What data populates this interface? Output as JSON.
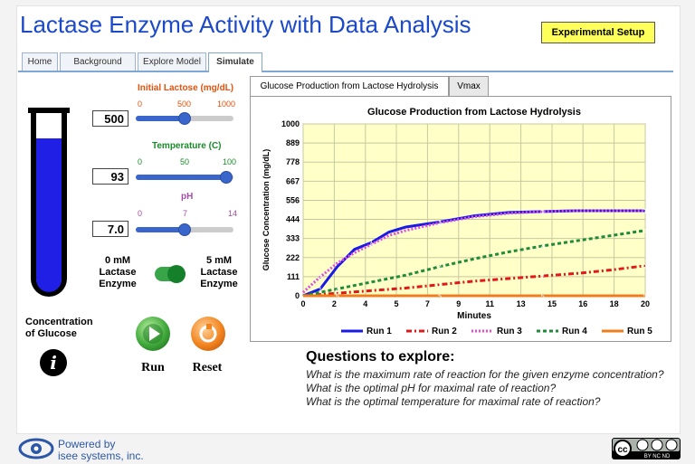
{
  "app": {
    "title": "Lactase Enzyme Activity with Data Analysis",
    "experimental_setup_label": "Experimental Setup"
  },
  "tabs": [
    {
      "label": "Home",
      "active": false
    },
    {
      "label": "Background",
      "active": false
    },
    {
      "label": "Explore Model",
      "active": false
    },
    {
      "label": "Simulate",
      "active": true
    }
  ],
  "controls": {
    "lactose": {
      "label": "Initial Lactose (mg/dL)",
      "value": "500",
      "ticks": [
        "0",
        "500",
        "1000"
      ],
      "min": 0,
      "max": 1000,
      "current": 500,
      "color": "#e0520e"
    },
    "temperature": {
      "label": "Temperature (C)",
      "value": "93",
      "ticks": [
        "0",
        "50",
        "100"
      ],
      "min": 0,
      "max": 100,
      "current": 93,
      "color": "#1a8a2a"
    },
    "ph": {
      "label": "pH",
      "value": "7.0",
      "ticks": [
        "0",
        "7",
        "14"
      ],
      "min": 0,
      "max": 14,
      "current": 7,
      "color": "#a64ca6"
    },
    "enzyme_left": "0 mM\nLactase\nEnzyme",
    "enzyme_right": "5 mM\nLactase\nEnzyme",
    "enzyme_on": true,
    "concentration_label": "Concentration\nof Glucose",
    "tube_level_fraction": 0.86
  },
  "buttons": {
    "run": "Run",
    "reset": "Reset"
  },
  "graph_tabs": [
    {
      "label": "Glucose Production from Lactose Hydrolysis",
      "active": true
    },
    {
      "label": "Vmax",
      "active": false
    }
  ],
  "chart_data": {
    "type": "line",
    "title": "Glucose Production from Lactose Hydrolysis",
    "xlabel": "Minutes",
    "ylabel": "Glucose Concentration (mg/dL)",
    "xlim": [
      0,
      20
    ],
    "ylim": [
      0,
      1000
    ],
    "xticks": [
      "0",
      "2",
      "4",
      "5",
      "7",
      "9",
      "11",
      "13",
      "15",
      "16",
      "18",
      "20"
    ],
    "xtick_values": [
      0,
      1.82,
      3.64,
      5.45,
      7.27,
      9.09,
      10.91,
      12.73,
      14.55,
      16.36,
      18.18,
      20
    ],
    "yticks": [
      "0",
      "111",
      "222",
      "333",
      "444",
      "556",
      "667",
      "778",
      "889",
      "1000"
    ],
    "grid": true,
    "legend_position": "bottom",
    "series": [
      {
        "name": "Run 1",
        "marker": "1",
        "color": "#1a1ae6",
        "dash": "",
        "x": [
          0,
          1,
          2,
          3,
          4,
          5,
          6,
          8,
          10,
          12,
          14,
          16,
          18,
          20
        ],
        "y": [
          0,
          40,
          170,
          270,
          310,
          370,
          400,
          430,
          465,
          485,
          490,
          495,
          495,
          495
        ]
      },
      {
        "name": "Run 2",
        "marker": "2",
        "color": "#e01818",
        "dash": "6,3,2,3",
        "x": [
          0,
          2,
          4,
          6,
          8,
          10,
          12,
          14,
          16,
          18,
          20
        ],
        "y": [
          0,
          15,
          30,
          45,
          65,
          85,
          100,
          115,
          130,
          150,
          175
        ]
      },
      {
        "name": "Run 3",
        "marker": "3",
        "color": "#e24ae2",
        "dash": "2,2",
        "x": [
          0,
          1,
          2,
          3,
          4,
          5,
          6,
          8,
          10,
          12,
          14,
          16,
          18,
          20
        ],
        "y": [
          20,
          110,
          190,
          250,
          300,
          350,
          380,
          425,
          460,
          480,
          490,
          495,
          495,
          495
        ]
      },
      {
        "name": "Run 4",
        "marker": "4",
        "color": "#1f8a3a",
        "dash": "4,3",
        "x": [
          0,
          2,
          4,
          6,
          8,
          10,
          12,
          14,
          16,
          18,
          20
        ],
        "y": [
          0,
          40,
          80,
          120,
          170,
          215,
          255,
          290,
          320,
          350,
          380
        ]
      },
      {
        "name": "Run 5",
        "marker": "5",
        "color": "#f07d1b",
        "dash": "",
        "x": [
          0,
          2,
          4,
          6,
          8,
          10,
          12,
          14,
          16,
          18,
          20
        ],
        "y": [
          0,
          0,
          0,
          0,
          0,
          0,
          0,
          0,
          0,
          0,
          0
        ]
      }
    ]
  },
  "questions": {
    "title": "Questions to explore:",
    "items": [
      "What is the maximum rate of reaction for the given enzyme concentration?",
      "What is the optimal pH for maximal rate of reaction?",
      "What is the optimal temperature for maximal rate of reaction?"
    ]
  },
  "footer": {
    "powered_by": "Powered by\nisee systems, inc.",
    "license": "BY NC ND"
  },
  "colors": {
    "title": "#1c49c9",
    "plot_bg": "#ffffc8",
    "button_yellow": "#ffff5a"
  }
}
